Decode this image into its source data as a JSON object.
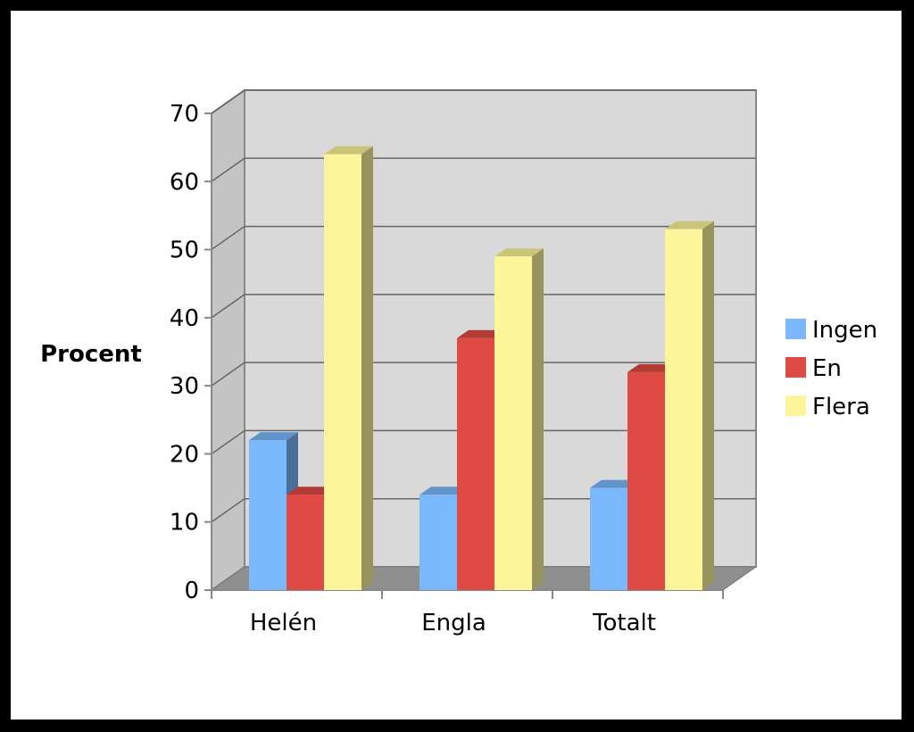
{
  "chart_data": {
    "type": "bar",
    "style": "3d-clustered",
    "title": "",
    "xlabel": "",
    "ylabel": "Procent",
    "ylim": [
      0,
      70
    ],
    "yticks": [
      0,
      10,
      20,
      30,
      40,
      50,
      60,
      70
    ],
    "grid": true,
    "legend_position": "right",
    "categories": [
      "Helén",
      "Engla",
      "Totalt"
    ],
    "series": [
      {
        "name": "Ingen",
        "values": [
          22,
          14,
          15
        ],
        "color": "#7ab8fb"
      },
      {
        "name": "En",
        "values": [
          14,
          37,
          32
        ],
        "color": "#e04a44"
      },
      {
        "name": "Flera",
        "values": [
          64,
          49,
          53
        ],
        "color": "#fdf59a"
      }
    ]
  }
}
